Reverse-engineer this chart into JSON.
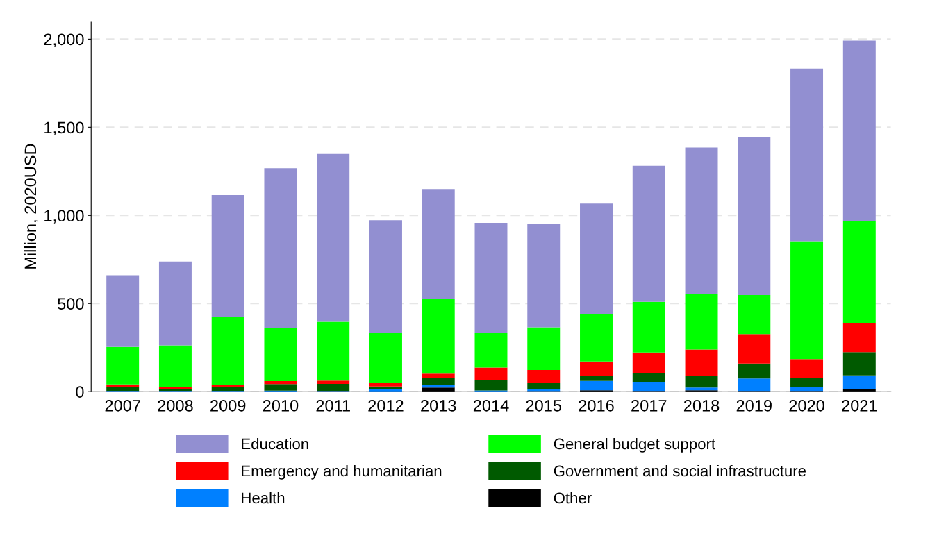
{
  "chart_data": {
    "type": "bar",
    "stacked": true,
    "ylabel": "Million, 2020USD",
    "categories": [
      "2007",
      "2008",
      "2009",
      "2010",
      "2011",
      "2012",
      "2013",
      "2014",
      "2015",
      "2016",
      "2017",
      "2018",
      "2019",
      "2020",
      "2021"
    ],
    "series": [
      {
        "name": "Other",
        "color": "#000000",
        "values": [
          2,
          2,
          2,
          null,
          3,
          null,
          23,
          null,
          3,
          8,
          4,
          8,
          4,
          4,
          14
        ]
      },
      {
        "name": "Health",
        "color": "#0080ff",
        "values": [
          3,
          3,
          3,
          6,
          2,
          13,
          17,
          7,
          11,
          53,
          52,
          15,
          71,
          24,
          78
        ]
      },
      {
        "name": "Government and social infrastructure",
        "color": "#005a00",
        "values": [
          20,
          11,
          20,
          37,
          39,
          16,
          40,
          60,
          38,
          30,
          47,
          64,
          84,
          49,
          132
        ]
      },
      {
        "name": "Emergency and humanitarian",
        "color": "#ff0000",
        "values": [
          16,
          9,
          11,
          17,
          19,
          20,
          22,
          70,
          71,
          80,
          119,
          152,
          168,
          108,
          167
        ]
      },
      {
        "name": "General budget support",
        "color": "#00ff00",
        "values": [
          213,
          238,
          389,
          303,
          334,
          284,
          425,
          198,
          242,
          269,
          288,
          317,
          221,
          668,
          577
        ]
      },
      {
        "name": "Education",
        "color": "#928fd1",
        "values": [
          406,
          475,
          690,
          905,
          952,
          640,
          623,
          623,
          587,
          627,
          772,
          829,
          896,
          980,
          1024
        ]
      }
    ],
    "ylim": [
      0,
      2100
    ],
    "yticks": [
      0,
      {
        "value": 500,
        "label": "500"
      },
      {
        "value": 1000,
        "label": "1,000"
      },
      {
        "value": 1500,
        "label": "1,500"
      },
      {
        "value": 2000,
        "label": "2,000"
      }
    ],
    "grid": "y",
    "legend": "bottom"
  }
}
